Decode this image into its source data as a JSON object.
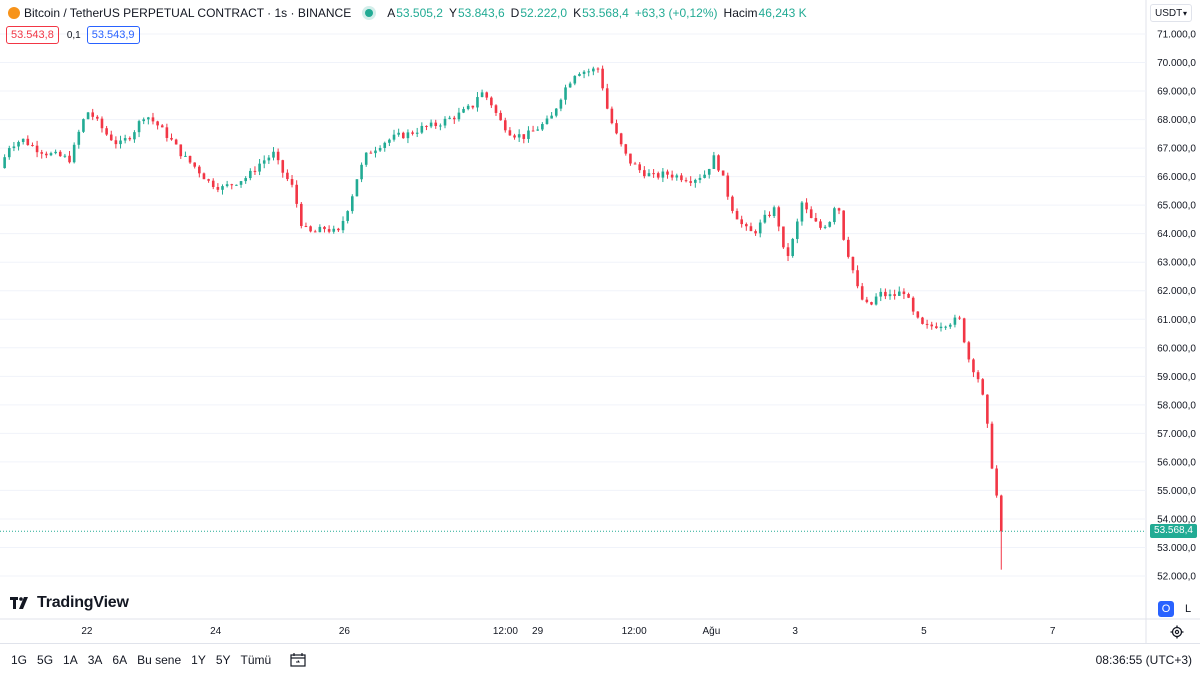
{
  "legend": {
    "title": "Bitcoin / TetherUS PERPETUAL CONTRACT · 1s · BINANCE",
    "ohlc": [
      {
        "k": "A",
        "v": "53.505,2"
      },
      {
        "k": "Y",
        "v": "53.843,6"
      },
      {
        "k": "D",
        "v": "52.222,0"
      },
      {
        "k": "K",
        "v": "53.568,4"
      },
      {
        "k": "",
        "v": "+63,3 (+0,12%)"
      },
      {
        "k": "Hacim",
        "v": "46,243 K"
      }
    ]
  },
  "trade": {
    "sell": "53.543,8",
    "spread": "0,1",
    "buy": "53.543,9"
  },
  "currency": "USDT",
  "last_price_label": "53.568,4",
  "logo_text": "TradingView",
  "ol_buttons": {
    "o": "O",
    "l": "L"
  },
  "time_ranges": [
    "1G",
    "5G",
    "1A",
    "3A",
    "6A",
    "Bu sene",
    "1Y",
    "5Y",
    "Tümü"
  ],
  "clock": "08:36:55 (UTC+3)",
  "colors": {
    "up": "#22ab94",
    "down": "#f23645",
    "accent": "#2962ff"
  },
  "chart_data": {
    "type": "candlestick",
    "title": "",
    "y_axis": {
      "ticks": [
        52000,
        53000,
        54000,
        55000,
        56000,
        57000,
        58000,
        59000,
        60000,
        61000,
        62000,
        63000,
        64000,
        65000,
        66000,
        67000,
        68000,
        69000,
        70000,
        71000
      ],
      "tick_labels": [
        "52.000,0",
        "53.000,0",
        "54.000,0",
        "55.000,0",
        "56.000,0",
        "57.000,0",
        "58.000,0",
        "59.000,0",
        "60.000,0",
        "61.000,0",
        "62.000,0",
        "63.000,0",
        "64.000,0",
        "65.000,0",
        "66.000,0",
        "67.000,0",
        "68.000,0",
        "69.000,0",
        "70.000,0",
        "71.000,0"
      ],
      "range": [
        51500,
        71500
      ]
    },
    "x_axis": {
      "tick_labels": [
        "22",
        "24",
        "26",
        "12:00",
        "29",
        "12:00",
        "Ağu",
        "3",
        "5",
        "7"
      ],
      "tick_days": [
        22,
        24,
        26,
        28.5,
        29,
        30.5,
        31.7,
        33,
        35,
        37
      ],
      "range_days": [
        20.65,
        38.45
      ]
    },
    "grid": "horizontal",
    "last_price": 53568.4,
    "price_path": [
      [
        20.65,
        66300
      ],
      [
        20.8,
        67100
      ],
      [
        21.0,
        67300
      ],
      [
        21.2,
        67000
      ],
      [
        21.4,
        66800
      ],
      [
        21.6,
        66700
      ],
      [
        21.75,
        66600
      ],
      [
        21.85,
        67400
      ],
      [
        22.0,
        68300
      ],
      [
        22.1,
        68100
      ],
      [
        22.3,
        67500
      ],
      [
        22.5,
        67100
      ],
      [
        22.7,
        67500
      ],
      [
        22.9,
        68200
      ],
      [
        23.1,
        67800
      ],
      [
        23.3,
        67300
      ],
      [
        23.5,
        66700
      ],
      [
        23.7,
        66300
      ],
      [
        23.9,
        65800
      ],
      [
        24.1,
        65600
      ],
      [
        24.3,
        65800
      ],
      [
        24.5,
        66000
      ],
      [
        24.7,
        66500
      ],
      [
        24.9,
        66800
      ],
      [
        25.0,
        66300
      ],
      [
        25.2,
        65600
      ],
      [
        25.35,
        64200
      ],
      [
        25.5,
        64000
      ],
      [
        25.7,
        64200
      ],
      [
        25.9,
        64000
      ],
      [
        26.0,
        64600
      ],
      [
        26.1,
        65200
      ],
      [
        26.2,
        66000
      ],
      [
        26.35,
        66800
      ],
      [
        26.6,
        67200
      ],
      [
        26.8,
        67400
      ],
      [
        27.0,
        67500
      ],
      [
        27.2,
        67700
      ],
      [
        27.4,
        67800
      ],
      [
        27.6,
        68000
      ],
      [
        27.8,
        68200
      ],
      [
        28.0,
        68500
      ],
      [
        28.1,
        69000
      ],
      [
        28.25,
        68700
      ],
      [
        28.4,
        68000
      ],
      [
        28.6,
        67500
      ],
      [
        28.8,
        67400
      ],
      [
        29.0,
        67700
      ],
      [
        29.2,
        68000
      ],
      [
        29.4,
        69000
      ],
      [
        29.6,
        69700
      ],
      [
        29.8,
        69700
      ],
      [
        29.95,
        69800
      ],
      [
        30.1,
        68200
      ],
      [
        30.25,
        67300
      ],
      [
        30.4,
        66600
      ],
      [
        30.6,
        66200
      ],
      [
        30.8,
        66000
      ],
      [
        31.0,
        66100
      ],
      [
        31.2,
        66000
      ],
      [
        31.4,
        65900
      ],
      [
        31.6,
        66100
      ],
      [
        31.75,
        66700
      ],
      [
        31.9,
        65800
      ],
      [
        32.0,
        65000
      ],
      [
        32.2,
        64200
      ],
      [
        32.35,
        64000
      ],
      [
        32.55,
        64600
      ],
      [
        32.7,
        64900
      ],
      [
        32.85,
        63000
      ],
      [
        33.0,
        64000
      ],
      [
        33.1,
        65100
      ],
      [
        33.25,
        64500
      ],
      [
        33.4,
        64200
      ],
      [
        33.55,
        64500
      ],
      [
        33.65,
        65300
      ],
      [
        33.75,
        63900
      ],
      [
        33.9,
        62700
      ],
      [
        34.0,
        61800
      ],
      [
        34.15,
        61400
      ],
      [
        34.3,
        61900
      ],
      [
        34.5,
        61800
      ],
      [
        34.7,
        62000
      ],
      [
        34.85,
        61100
      ],
      [
        35.0,
        60700
      ],
      [
        35.2,
        60800
      ],
      [
        35.4,
        60900
      ],
      [
        35.55,
        61000
      ],
      [
        35.7,
        59600
      ],
      [
        35.85,
        58900
      ],
      [
        35.95,
        57900
      ],
      [
        36.05,
        56000
      ],
      [
        36.15,
        54500
      ],
      [
        36.25,
        53568
      ]
    ]
  }
}
